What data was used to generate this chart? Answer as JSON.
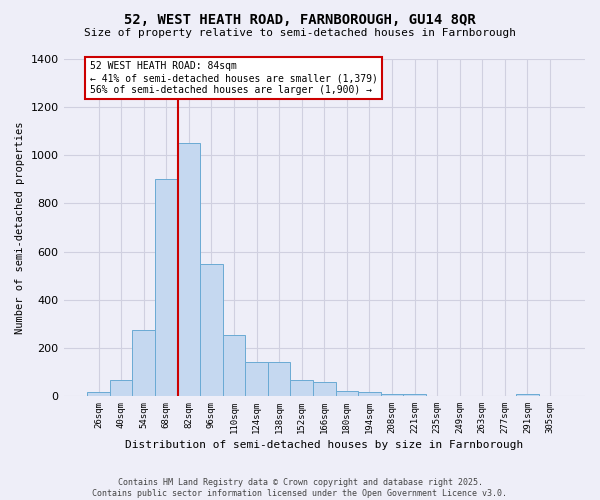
{
  "title_line1": "52, WEST HEATH ROAD, FARNBOROUGH, GU14 8QR",
  "title_line2": "Size of property relative to semi-detached houses in Farnborough",
  "xlabel": "Distribution of semi-detached houses by size in Farnborough",
  "ylabel": "Number of semi-detached properties",
  "footer_line1": "Contains HM Land Registry data © Crown copyright and database right 2025.",
  "footer_line2": "Contains public sector information licensed under the Open Government Licence v3.0.",
  "categories": [
    "26sqm",
    "40sqm",
    "54sqm",
    "68sqm",
    "82sqm",
    "96sqm",
    "110sqm",
    "124sqm",
    "138sqm",
    "152sqm",
    "166sqm",
    "180sqm",
    "194sqm",
    "208sqm",
    "221sqm",
    "235sqm",
    "249sqm",
    "263sqm",
    "277sqm",
    "291sqm",
    "305sqm"
  ],
  "values": [
    15,
    65,
    275,
    900,
    1050,
    550,
    255,
    140,
    140,
    65,
    60,
    20,
    15,
    10,
    10,
    0,
    0,
    0,
    0,
    10,
    0
  ],
  "bar_color": "#c5d8f0",
  "bar_edge_color": "#6aaad4",
  "bar_edge_width": 0.7,
  "grid_color": "#d0d0e0",
  "background_color": "#eeeef8",
  "annotation_box_color": "#ffffff",
  "annotation_border_color": "#cc0000",
  "red_line_color": "#cc0000",
  "red_line_x": 3.5,
  "annotation_text_line1": "52 WEST HEATH ROAD: 84sqm",
  "annotation_text_line2": "← 41% of semi-detached houses are smaller (1,379)",
  "annotation_text_line3": "56% of semi-detached houses are larger (1,900) →",
  "ylim": [
    0,
    1400
  ],
  "yticks": [
    0,
    200,
    400,
    600,
    800,
    1000,
    1200,
    1400
  ]
}
